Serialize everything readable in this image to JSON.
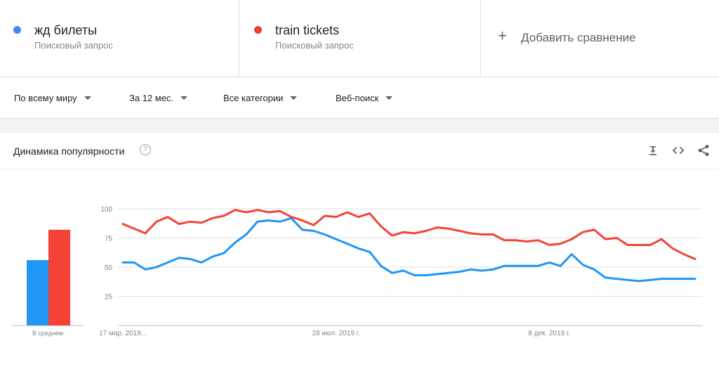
{
  "terms": [
    {
      "name": "жд билеты",
      "sub": "Поисковый запрос",
      "color": "#4285f4"
    },
    {
      "name": "train tickets",
      "sub": "Поисковый запрос",
      "color": "#ea4335"
    }
  ],
  "add_compare": {
    "label": "Добавить сравнение",
    "icon": "plus-icon"
  },
  "filters": [
    {
      "label": "По всему миру"
    },
    {
      "label": "За 12 мес."
    },
    {
      "label": "Все категории"
    },
    {
      "label": "Веб-поиск"
    }
  ],
  "card": {
    "title": "Динамика популярности",
    "help_icon": "?",
    "icons": [
      "download-icon",
      "embed-icon",
      "share-icon"
    ]
  },
  "chart_data": {
    "type": "line",
    "ylim": [
      0,
      100
    ],
    "y_ticks": [
      25,
      50,
      75,
      100
    ],
    "x_tick_labels": [
      {
        "label": "17 мар. 2019...",
        "index": 0
      },
      {
        "label": "28 июл. 2019 г.",
        "index": 19
      },
      {
        "label": "8 дек. 2019 г.",
        "index": 38
      }
    ],
    "average": {
      "label": "В среднем",
      "values": [
        56,
        82
      ]
    },
    "series": [
      {
        "name": "жд билеты",
        "color": "#2196f3",
        "values": [
          54,
          54,
          48,
          50,
          54,
          58,
          57,
          54,
          59,
          62,
          71,
          78,
          89,
          90,
          89,
          92,
          82,
          81,
          78,
          74,
          70,
          66,
          63,
          51,
          45,
          47,
          43,
          43,
          44,
          45,
          46,
          48,
          47,
          48,
          51,
          51,
          51,
          51,
          54,
          51,
          61,
          52,
          48,
          41,
          40,
          39,
          38,
          39,
          40,
          40,
          40,
          40
        ]
      },
      {
        "name": "train tickets",
        "color": "#f44336",
        "values": [
          87,
          83,
          79,
          89,
          93,
          87,
          89,
          88,
          92,
          94,
          99,
          97,
          99,
          97,
          98,
          93,
          90,
          86,
          94,
          93,
          97,
          93,
          96,
          85,
          77,
          80,
          79,
          81,
          84,
          83,
          81,
          79,
          78,
          78,
          73,
          73,
          72,
          73,
          69,
          70,
          74,
          80,
          82,
          74,
          75,
          69,
          69,
          69,
          74,
          66,
          61,
          57
        ]
      }
    ]
  }
}
